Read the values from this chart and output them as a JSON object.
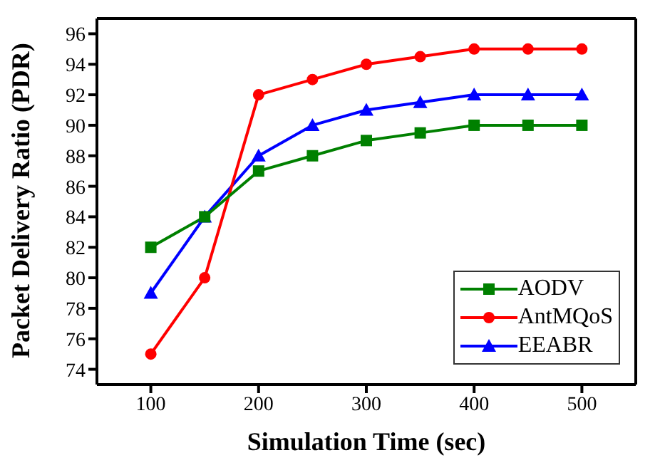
{
  "chart_data": {
    "type": "line",
    "xlabel": "Simulation Time (sec)",
    "ylabel": "Packet Delivery Ratio (PDR)",
    "x": [
      100,
      150,
      200,
      250,
      300,
      350,
      400,
      450,
      500
    ],
    "series": [
      {
        "name": "AODV",
        "color": "#008000",
        "marker": "square",
        "values": [
          82,
          84,
          87,
          88,
          89,
          89.5,
          90,
          90,
          90
        ]
      },
      {
        "name": "AntMQoS",
        "color": "#ff0000",
        "marker": "circle",
        "values": [
          75,
          80,
          92,
          93,
          94,
          94.5,
          95,
          95,
          95
        ]
      },
      {
        "name": "EEABR",
        "color": "#0000ff",
        "marker": "triangle",
        "values": [
          79,
          84,
          88,
          90,
          91,
          91.5,
          92,
          92,
          92
        ]
      }
    ],
    "xlim": [
      50,
      550
    ],
    "xticks": [
      100,
      200,
      300,
      400,
      500
    ],
    "ylim": [
      73,
      97
    ],
    "yticks": [
      74,
      76,
      78,
      80,
      82,
      84,
      86,
      88,
      90,
      92,
      94,
      96
    ],
    "grid": false,
    "legend": "bottom right"
  }
}
